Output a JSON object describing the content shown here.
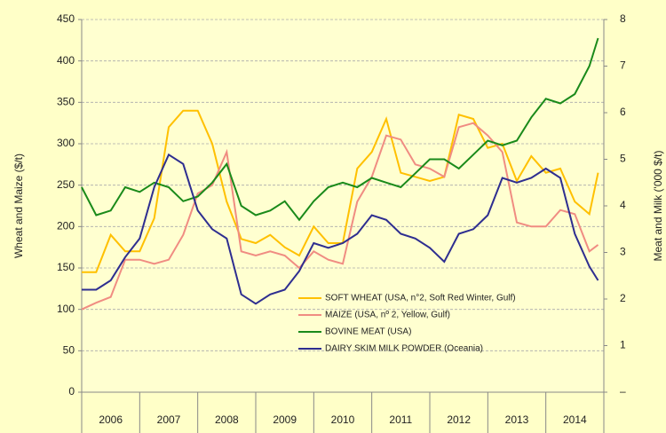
{
  "chart_data": {
    "type": "line",
    "y_label": "Wheat and Maize ($/t)",
    "y2_label": "Meat and Milk ('000 $/t)",
    "categories": [
      "2006",
      "2007",
      "2008",
      "2009",
      "2010",
      "2011",
      "2012",
      "2013",
      "2014"
    ],
    "x": [
      2006,
      2006.25,
      2006.5,
      2006.75,
      2007,
      2007.25,
      2007.5,
      2007.75,
      2008,
      2008.25,
      2008.5,
      2008.75,
      2009,
      2009.25,
      2009.5,
      2009.75,
      2010,
      2010.25,
      2010.5,
      2010.75,
      2011,
      2011.25,
      2011.5,
      2011.75,
      2012,
      2012.25,
      2012.5,
      2012.75,
      2013,
      2013.25,
      2013.5,
      2013.75,
      2014,
      2014.25,
      2014.5,
      2014.75,
      2014.9
    ],
    "xlim": [
      2006,
      2015
    ],
    "ylim": [
      0,
      450
    ],
    "yticks": [
      0,
      50,
      100,
      150,
      200,
      250,
      300,
      350,
      400,
      450
    ],
    "y2lim": [
      0,
      8
    ],
    "y2ticks": [
      {
        "value": 0,
        "label": "–"
      },
      1,
      2,
      3,
      4,
      5,
      6,
      7,
      8
    ],
    "grid": true,
    "legend": "lower center",
    "series": [
      {
        "name": "SOFT WHEAT (USA, n°2, Soft Red Winter, Gulf)",
        "color": "#ffc000",
        "values": [
          145,
          145,
          190,
          170,
          170,
          210,
          320,
          340,
          340,
          300,
          230,
          185,
          180,
          190,
          175,
          165,
          200,
          180,
          180,
          270,
          290,
          330,
          265,
          260,
          255,
          260,
          335,
          330,
          295,
          300,
          255,
          285,
          265,
          270,
          230,
          215,
          265
        ]
      },
      {
        "name": "MAIZE (USA, nº 2, Yellow, Gulf)",
        "color": "#f08c82",
        "values": [
          100,
          108,
          115,
          160,
          160,
          155,
          160,
          190,
          240,
          250,
          290,
          170,
          165,
          170,
          165,
          150,
          170,
          160,
          155,
          230,
          260,
          310,
          305,
          275,
          270,
          260,
          320,
          325,
          310,
          290,
          205,
          200,
          200,
          220,
          215,
          170,
          178
        ]
      },
      {
        "name": "BOVINE MEAT (USA)",
        "color": "#1a8a1a",
        "axis": "y2",
        "values": [
          4.4,
          3.8,
          3.9,
          4.4,
          4.3,
          4.5,
          4.4,
          4.1,
          4.2,
          4.5,
          4.9,
          4.0,
          3.8,
          3.9,
          4.1,
          3.7,
          4.1,
          4.4,
          4.5,
          4.4,
          4.6,
          4.5,
          4.4,
          4.7,
          5.0,
          5.0,
          4.8,
          5.1,
          5.4,
          5.3,
          5.4,
          5.9,
          6.3,
          6.2,
          6.4,
          7.0,
          7.6
        ]
      },
      {
        "name": "DAIRY SKIM MILK POWDER (Oceania)",
        "color": "#2e2e90",
        "axis": "y2",
        "values": [
          2.2,
          2.2,
          2.4,
          2.9,
          3.3,
          4.4,
          5.1,
          4.9,
          3.9,
          3.5,
          3.3,
          2.1,
          1.9,
          2.1,
          2.2,
          2.6,
          3.2,
          3.1,
          3.2,
          3.4,
          3.8,
          3.7,
          3.4,
          3.3,
          3.1,
          2.8,
          3.4,
          3.5,
          3.8,
          4.6,
          4.5,
          4.6,
          4.8,
          4.6,
          3.4,
          2.7,
          2.4
        ]
      }
    ]
  }
}
